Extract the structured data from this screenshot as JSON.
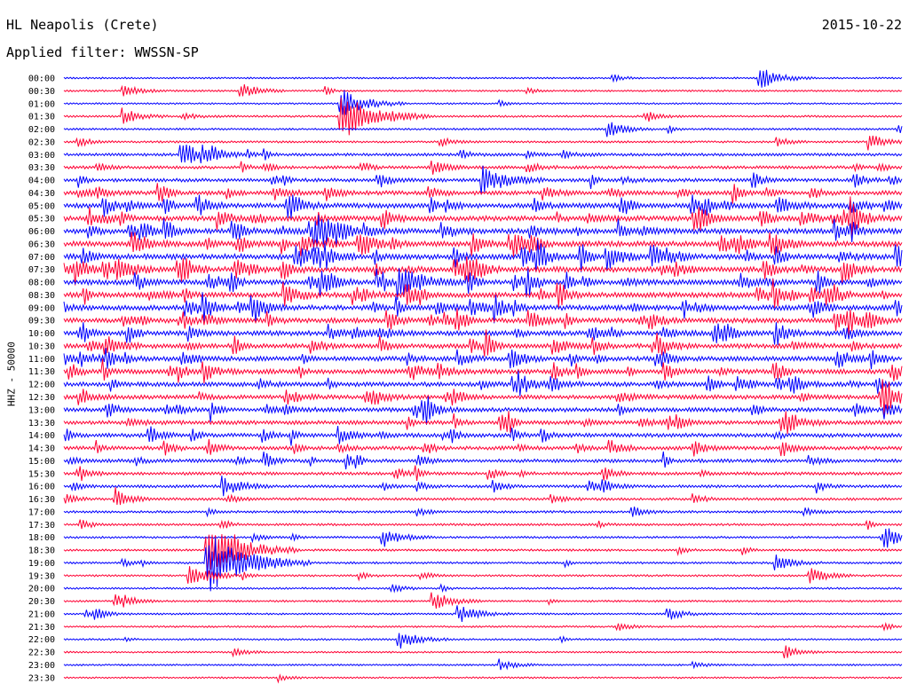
{
  "header": {
    "station": "HL Neapolis (Crete)",
    "date": "2015-10-22",
    "filter": "Applied filter: WWSSN-SP"
  },
  "chart_data": {
    "type": "line",
    "title": "HL Neapolis (Crete)",
    "ylabel": "HHZ - 50000",
    "xlabel": "",
    "row_labels": [
      "00:00",
      "00:30",
      "01:00",
      "01:30",
      "02:00",
      "02:30",
      "03:00",
      "03:30",
      "04:00",
      "04:30",
      "05:00",
      "05:30",
      "06:00",
      "06:30",
      "07:00",
      "07:30",
      "08:00",
      "08:30",
      "09:00",
      "09:30",
      "10:00",
      "10:30",
      "11:00",
      "11:30",
      "12:00",
      "12:30",
      "13:00",
      "13:30",
      "14:00",
      "14:30",
      "15:00",
      "15:30",
      "16:00",
      "16:30",
      "17:00",
      "17:30",
      "18:00",
      "18:30",
      "19:00",
      "19:30",
      "20:00",
      "20:30",
      "21:00",
      "21:30",
      "22:00",
      "22:30",
      "23:00",
      "23:30"
    ],
    "series_colors": [
      "#0000ff",
      "#ff0033"
    ],
    "row_activity": [
      0.05,
      0.08,
      0.06,
      0.12,
      0.1,
      0.14,
      0.3,
      0.35,
      0.45,
      0.6,
      0.75,
      0.8,
      0.85,
      0.85,
      0.85,
      0.85,
      0.8,
      0.8,
      0.8,
      0.75,
      0.75,
      0.7,
      0.7,
      0.7,
      0.65,
      0.6,
      0.6,
      0.55,
      0.55,
      0.5,
      0.45,
      0.35,
      0.3,
      0.25,
      0.2,
      0.18,
      0.15,
      0.15,
      0.14,
      0.12,
      0.1,
      0.1,
      0.08,
      0.08,
      0.07,
      0.06,
      0.06,
      0.05
    ],
    "events": [
      {
        "row": 0,
        "x_frac": 0.83,
        "amp": 1.4
      },
      {
        "row": 1,
        "x_frac": 0.07,
        "amp": 0.8
      },
      {
        "row": 1,
        "x_frac": 0.21,
        "amp": 1.0
      },
      {
        "row": 2,
        "x_frac": 0.33,
        "amp": 2.0
      },
      {
        "row": 3,
        "x_frac": 0.07,
        "amp": 1.0
      },
      {
        "row": 3,
        "x_frac": 0.33,
        "amp": 3.2
      },
      {
        "row": 4,
        "x_frac": 0.65,
        "amp": 1.0
      },
      {
        "row": 5,
        "x_frac": 0.96,
        "amp": 1.0
      },
      {
        "row": 6,
        "x_frac": 0.14,
        "amp": 1.6
      },
      {
        "row": 8,
        "x_frac": 0.5,
        "amp": 1.8
      },
      {
        "row": 12,
        "x_frac": 0.3,
        "amp": 2.0
      },
      {
        "row": 16,
        "x_frac": 0.4,
        "amp": 2.0
      },
      {
        "row": 32,
        "x_frac": 0.19,
        "amp": 1.2
      },
      {
        "row": 36,
        "x_frac": 0.38,
        "amp": 1.2
      },
      {
        "row": 36,
        "x_frac": 0.98,
        "amp": 1.0
      },
      {
        "row": 37,
        "x_frac": 0.17,
        "amp": 3.5
      },
      {
        "row": 38,
        "x_frac": 0.17,
        "amp": 4.0
      },
      {
        "row": 38,
        "x_frac": 0.85,
        "amp": 1.0
      },
      {
        "row": 39,
        "x_frac": 0.15,
        "amp": 1.5
      },
      {
        "row": 39,
        "x_frac": 0.89,
        "amp": 1.0
      },
      {
        "row": 41,
        "x_frac": 0.06,
        "amp": 0.8
      },
      {
        "row": 41,
        "x_frac": 0.44,
        "amp": 1.2
      },
      {
        "row": 42,
        "x_frac": 0.47,
        "amp": 1.3
      },
      {
        "row": 42,
        "x_frac": 0.72,
        "amp": 0.8
      },
      {
        "row": 44,
        "x_frac": 0.4,
        "amp": 1.2
      },
      {
        "row": 45,
        "x_frac": 0.86,
        "amp": 0.8
      },
      {
        "row": 46,
        "x_frac": 0.52,
        "amp": 0.7
      }
    ],
    "grid": false,
    "legend": "none"
  }
}
